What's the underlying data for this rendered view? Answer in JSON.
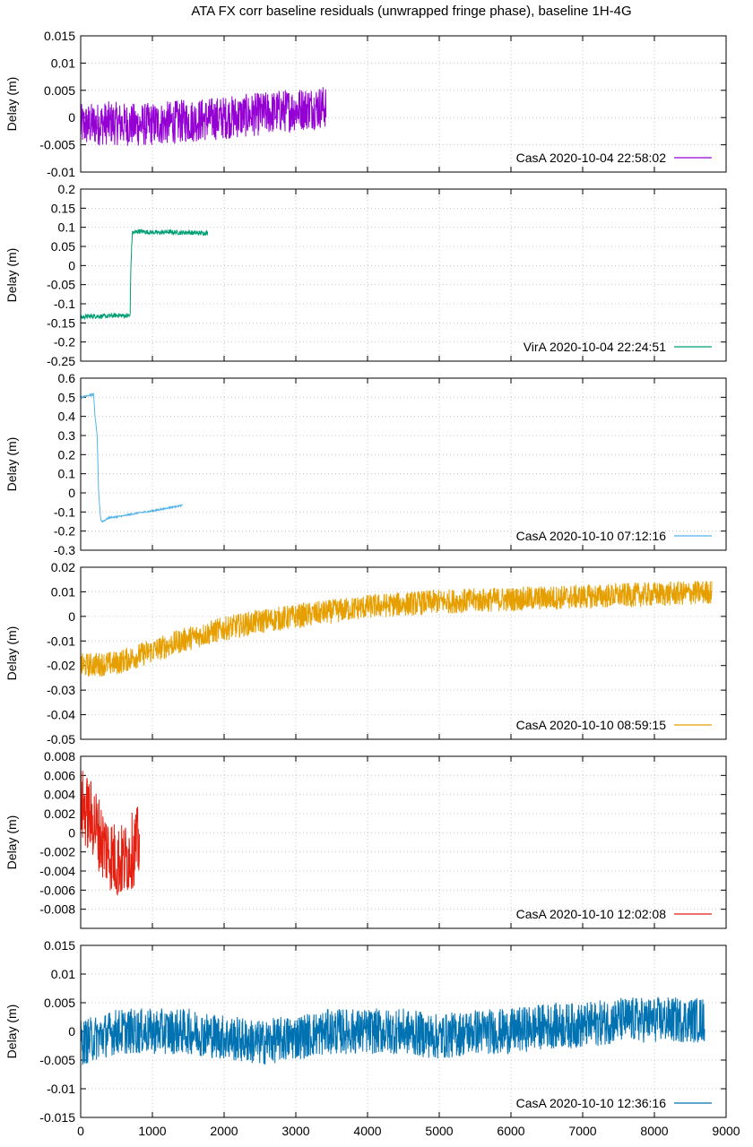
{
  "figure": {
    "title": "ATA FX corr baseline residuals (unwrapped fringe phase), baseline 1H-4G"
  },
  "chart_data": [
    {
      "type": "line",
      "title": "",
      "ylabel": "Delay (m)",
      "xlabel": "",
      "xlim": [
        0,
        9000
      ],
      "ylim": [
        -0.01,
        0.015
      ],
      "yticks": [
        -0.01,
        -0.005,
        0,
        0.005,
        0.01,
        0.015
      ],
      "ytick_labels": [
        "-0.01",
        "-0.005",
        "0",
        "0.005",
        "0.01",
        "0.015"
      ],
      "grid": true,
      "legend": "bottom-right",
      "series": [
        {
          "name": "CasA 2020-10-04 22:58:02",
          "color": "#9400d3",
          "noise_amplitude": 0.004,
          "x": [
            0,
            200,
            400,
            600,
            800,
            1000,
            1200,
            1400,
            1600,
            1800,
            2000,
            2200,
            2400,
            2600,
            2800,
            3000,
            3200,
            3420
          ],
          "y": [
            -0.0015,
            -0.0012,
            -0.001,
            -0.0012,
            -0.0014,
            -0.0012,
            -0.001,
            -0.0007,
            -0.0005,
            -0.0003,
            0,
            0.0002,
            0.0005,
            0.0008,
            0.0012,
            0.0015,
            0.0018,
            0.002
          ]
        }
      ]
    },
    {
      "type": "line",
      "title": "",
      "ylabel": "Delay (m)",
      "xlabel": "",
      "xlim": [
        0,
        9000
      ],
      "ylim": [
        -0.25,
        0.2
      ],
      "yticks": [
        -0.25,
        -0.2,
        -0.15,
        -0.1,
        -0.05,
        0,
        0.05,
        0.1,
        0.15,
        0.2
      ],
      "ytick_labels": [
        "-0.25",
        "-0.2",
        "-0.15",
        "-0.1",
        "-0.05",
        "0",
        "0.05",
        "0.1",
        "0.15",
        "0.2"
      ],
      "grid": true,
      "legend": "bottom-right",
      "series": [
        {
          "name": "VirA 2020-10-04 22:24:51",
          "color": "#009e73",
          "noise_amplitude": 0.006,
          "x": [
            0,
            100,
            200,
            300,
            400,
            500,
            600,
            690,
            700,
            720,
            800,
            900,
            1000,
            1100,
            1200,
            1300,
            1400,
            1500,
            1600,
            1770
          ],
          "y": [
            -0.135,
            -0.133,
            -0.132,
            -0.133,
            -0.132,
            -0.13,
            -0.131,
            -0.131,
            0.0,
            0.085,
            0.09,
            0.088,
            0.087,
            0.086,
            0.088,
            0.087,
            0.086,
            0.087,
            0.085,
            0.085
          ]
        }
      ]
    },
    {
      "type": "line",
      "title": "",
      "ylabel": "Delay (m)",
      "xlabel": "",
      "xlim": [
        0,
        9000
      ],
      "ylim": [
        -0.3,
        0.6
      ],
      "yticks": [
        -0.3,
        -0.2,
        -0.1,
        0,
        0.1,
        0.2,
        0.3,
        0.4,
        0.5,
        0.6
      ],
      "ytick_labels": [
        "-0.3",
        "-0.2",
        "-0.1",
        "0",
        "0.1",
        "0.2",
        "0.3",
        "0.4",
        "0.5",
        "0.6"
      ],
      "grid": true,
      "legend": "bottom-right",
      "series": [
        {
          "name": "CasA 2020-10-10 07:12:16",
          "color": "#56b4e9",
          "noise_amplitude": 0.004,
          "x": [
            0,
            100,
            180,
            200,
            230,
            250,
            280,
            300,
            400,
            600,
            800,
            1000,
            1200,
            1420
          ],
          "y": [
            0.5,
            0.51,
            0.515,
            0.4,
            0.3,
            0.0,
            -0.14,
            -0.15,
            -0.13,
            -0.12,
            -0.105,
            -0.095,
            -0.08,
            -0.065
          ]
        }
      ]
    },
    {
      "type": "line",
      "title": "",
      "ylabel": "Delay (m)",
      "xlabel": "",
      "xlim": [
        0,
        9000
      ],
      "ylim": [
        -0.05,
        0.02
      ],
      "yticks": [
        -0.05,
        -0.04,
        -0.03,
        -0.02,
        -0.01,
        0,
        0.01,
        0.02
      ],
      "ytick_labels": [
        "-0.05",
        "-0.04",
        "-0.03",
        "-0.02",
        "-0.01",
        "0",
        "0.01",
        "0.02"
      ],
      "grid": true,
      "legend": "bottom-right",
      "series": [
        {
          "name": "CasA 2020-10-10 08:59:15",
          "color": "#e69f00",
          "noise_amplitude": 0.005,
          "x": [
            0,
            500,
            1000,
            1500,
            2000,
            2500,
            3000,
            3500,
            4000,
            4500,
            5000,
            5500,
            6000,
            6500,
            7000,
            7500,
            8000,
            8500,
            8800
          ],
          "y": [
            -0.02,
            -0.019,
            -0.014,
            -0.009,
            -0.005,
            -0.002,
            0.0,
            0.002,
            0.004,
            0.005,
            0.006,
            0.0065,
            0.007,
            0.0075,
            0.008,
            0.0085,
            0.009,
            0.0095,
            0.01
          ]
        }
      ]
    },
    {
      "type": "line",
      "title": "",
      "ylabel": "Delay (m)",
      "xlabel": "",
      "xlim": [
        0,
        9000
      ],
      "ylim": [
        -0.01,
        0.008
      ],
      "yticks": [
        -0.01,
        -0.008,
        -0.006,
        -0.004,
        -0.002,
        0,
        0.002,
        0.004,
        0.006,
        0.008
      ],
      "ytick_labels": [
        "",
        "-0.008",
        "-0.006",
        "-0.004",
        "-0.002",
        "0",
        "0.002",
        "0.004",
        "0.006",
        "0.008"
      ],
      "grid": true,
      "legend": "bottom-right",
      "series": [
        {
          "name": "CasA 2020-10-10 12:02:08",
          "color": "#e51e10",
          "noise_amplitude": 0.004,
          "x": [
            0,
            100,
            200,
            300,
            400,
            500,
            600,
            700,
            820
          ],
          "y": [
            0.003,
            0.002,
            0.001,
            -0.001,
            -0.002,
            -0.003,
            -0.003,
            -0.002,
            -0.001
          ]
        }
      ]
    },
    {
      "type": "line",
      "title": "",
      "ylabel": "Delay (m)",
      "xlabel": "",
      "xlim": [
        0,
        9000
      ],
      "xticks": [
        0,
        1000,
        2000,
        3000,
        4000,
        5000,
        6000,
        7000,
        8000,
        9000
      ],
      "ylim": [
        -0.015,
        0.015
      ],
      "yticks": [
        -0.015,
        -0.01,
        -0.005,
        0,
        0.005,
        0.01,
        0.015
      ],
      "ytick_labels": [
        "-0.015",
        "-0.01",
        "-0.005",
        "0",
        "0.005",
        "0.01",
        "0.015"
      ],
      "grid": true,
      "legend": "bottom-right",
      "series": [
        {
          "name": "CasA 2020-10-10 12:36:16",
          "color": "#0072b2",
          "noise_amplitude": 0.004,
          "x": [
            0,
            500,
            1000,
            1500,
            2000,
            2500,
            3000,
            3500,
            4000,
            4500,
            5000,
            5500,
            6000,
            6500,
            7000,
            7500,
            8000,
            8500,
            8700
          ],
          "y": [
            -0.002,
            0.0,
            0.0,
            0.0,
            -0.001,
            -0.002,
            -0.001,
            0.0,
            0.0,
            0.0,
            -0.001,
            0.0,
            0.0,
            0.001,
            0.001,
            0.002,
            0.002,
            0.002,
            0.002
          ]
        }
      ]
    }
  ]
}
